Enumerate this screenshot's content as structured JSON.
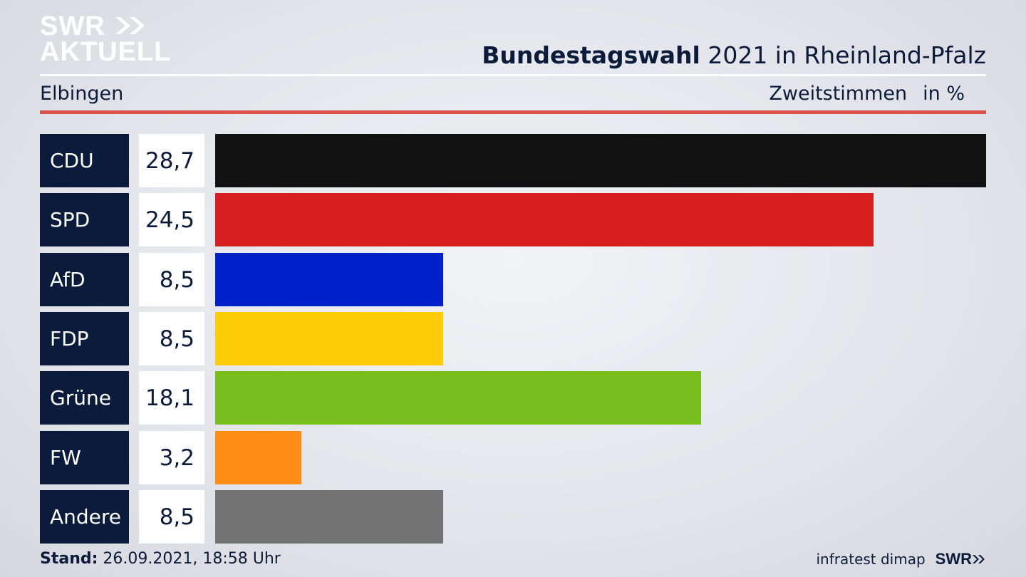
{
  "logo": {
    "line1": "SWR",
    "line2": "AKTUELL",
    "color": "#ffffff"
  },
  "header": {
    "title_strong": "Bundestagswahl",
    "title_rest": " 2021 in Rheinland-Pfalz",
    "location": "Elbingen",
    "vote_type": "Zweitstimmen",
    "unit": "in %"
  },
  "chart_data": {
    "type": "bar",
    "orientation": "horizontal",
    "categories": [
      "CDU",
      "SPD",
      "AfD",
      "FDP",
      "Grüne",
      "FW",
      "Andere"
    ],
    "values": [
      28.7,
      24.5,
      8.5,
      8.5,
      18.1,
      3.2,
      8.5
    ],
    "value_labels": [
      "28,7",
      "24,5",
      "8,5",
      "8,5",
      "18,1",
      "3,2",
      "8,5"
    ],
    "colors": [
      "#121212",
      "#d81f1f",
      "#0021c9",
      "#ffcc08",
      "#78bf1e",
      "#ff8c17",
      "#737374"
    ],
    "xlim": [
      0,
      28.7
    ],
    "grid": false
  },
  "footer": {
    "stand_label": "Stand:",
    "stand_value": " 26.09.2021, 18:58 Uhr",
    "source": "infratest dimap",
    "brand": "SWR"
  }
}
